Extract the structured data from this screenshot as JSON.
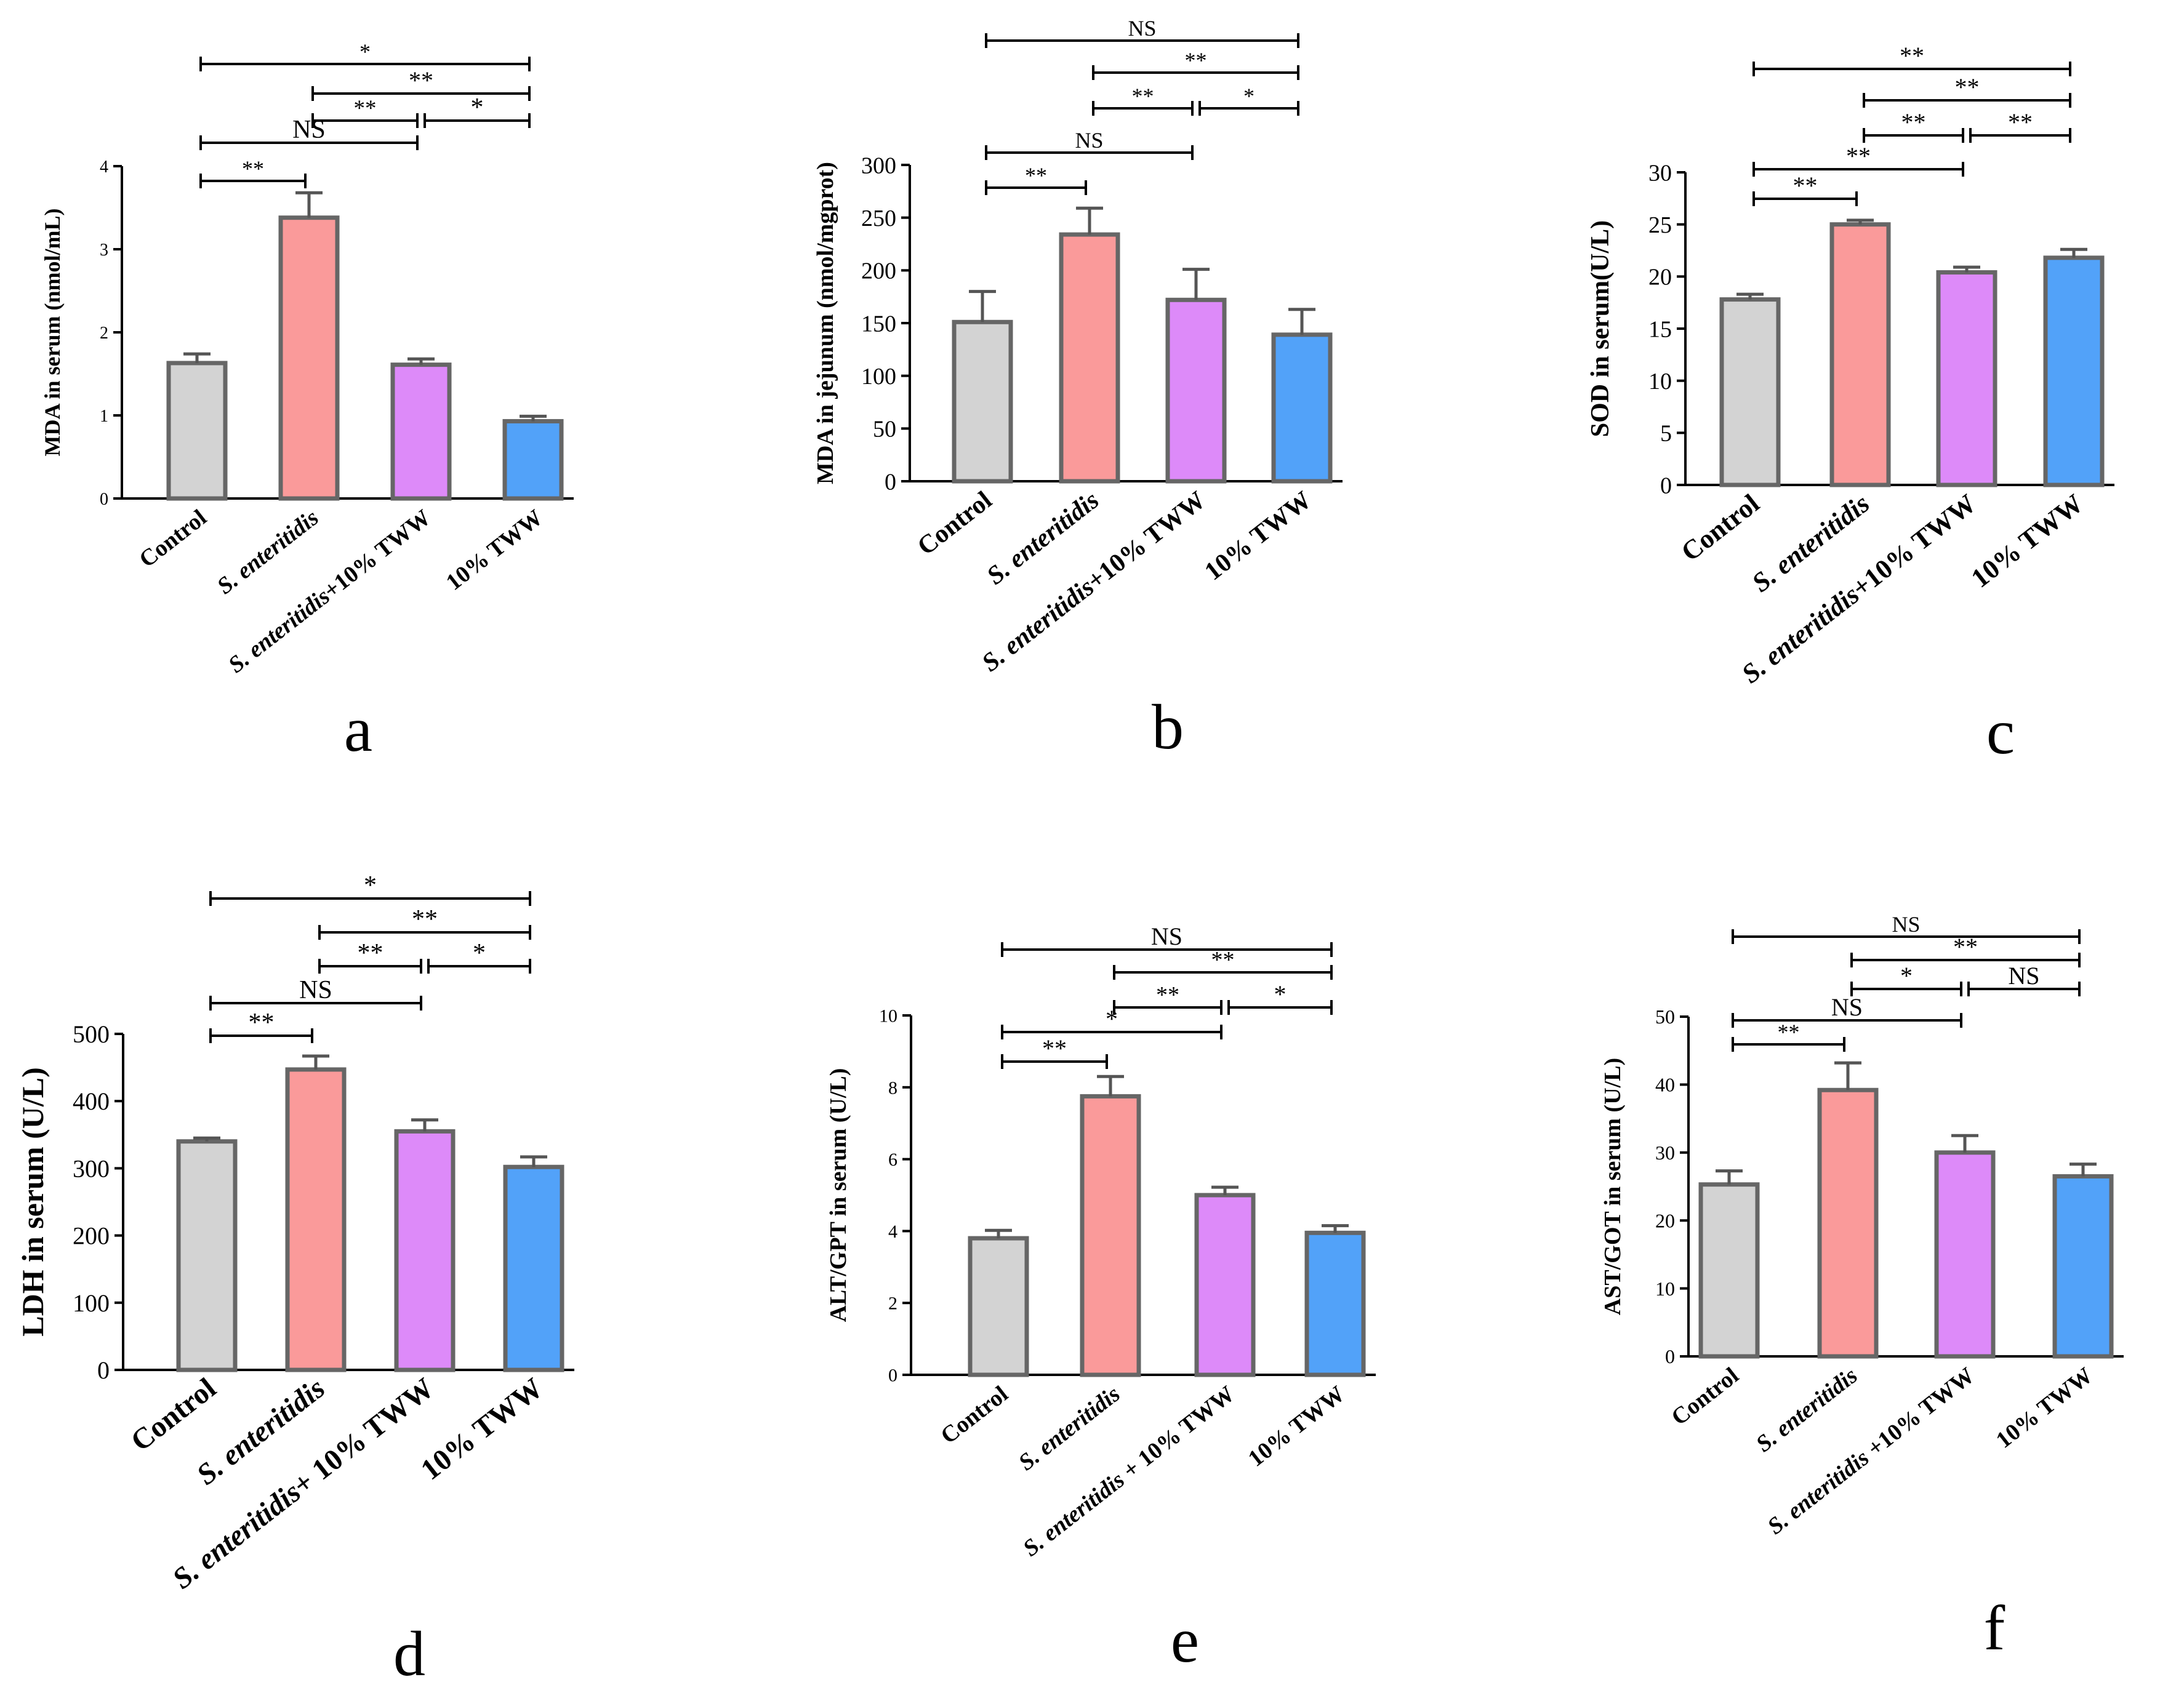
{
  "figure": {
    "panels": [
      {
        "id": "a",
        "letter": "a"
      },
      {
        "id": "b",
        "letter": "b"
      },
      {
        "id": "c",
        "letter": "c"
      },
      {
        "id": "d",
        "letter": "d"
      },
      {
        "id": "e",
        "letter": "e"
      },
      {
        "id": "f",
        "letter": "f"
      }
    ]
  },
  "chart_data": [
    {
      "panel": "a",
      "type": "bar",
      "ylabel": "MDA in serum (nmol/mL)",
      "ylim": [
        0,
        4
      ],
      "yticks": [
        0,
        1,
        2,
        3,
        4
      ],
      "categories": [
        {
          "parts": [
            {
              "text": "Control",
              "italic": false
            }
          ]
        },
        {
          "parts": [
            {
              "text": "S. enteritidis",
              "italic": true
            }
          ]
        },
        {
          "parts": [
            {
              "text": "S. enteritidis",
              "italic": true
            },
            {
              "text": "+10% TWW",
              "italic": false
            }
          ]
        },
        {
          "parts": [
            {
              "text": "10% TWW",
              "italic": false
            }
          ]
        }
      ],
      "values": [
        1.63,
        3.38,
        1.61,
        0.93
      ],
      "errors": [
        0.11,
        0.3,
        0.07,
        0.06
      ],
      "significance": [
        {
          "from": 0,
          "to": 1,
          "label": "**"
        },
        {
          "from": 0,
          "to": 2,
          "label": "NS"
        },
        {
          "from": 1,
          "to": 2,
          "label": "**"
        },
        {
          "from": 2,
          "to": 3,
          "label": "*"
        },
        {
          "from": 1,
          "to": 3,
          "label": "**"
        },
        {
          "from": 0,
          "to": 3,
          "label": "*"
        }
      ]
    },
    {
      "panel": "b",
      "type": "bar",
      "ylabel": "MDA in jejunum (nmol/mgprot)",
      "ylim": [
        0,
        300
      ],
      "yticks": [
        0,
        50,
        100,
        150,
        200,
        250,
        300
      ],
      "categories": [
        {
          "parts": [
            {
              "text": "Control",
              "italic": false
            }
          ]
        },
        {
          "parts": [
            {
              "text": "S. enteritidis",
              "italic": true
            }
          ]
        },
        {
          "parts": [
            {
              "text": "S. enteritidis",
              "italic": true
            },
            {
              "text": "+10% TWW",
              "italic": false
            }
          ]
        },
        {
          "parts": [
            {
              "text": "10% TWW",
              "italic": false
            }
          ]
        }
      ],
      "values": [
        151,
        234,
        172,
        139
      ],
      "errors": [
        29,
        25,
        29,
        24
      ],
      "significance": [
        {
          "from": 0,
          "to": 1,
          "label": "**"
        },
        {
          "from": 0,
          "to": 2,
          "label": "NS"
        },
        {
          "from": 1,
          "to": 2,
          "label": "**"
        },
        {
          "from": 2,
          "to": 3,
          "label": "*"
        },
        {
          "from": 1,
          "to": 3,
          "label": "**"
        },
        {
          "from": 0,
          "to": 3,
          "label": "NS"
        }
      ]
    },
    {
      "panel": "c",
      "type": "bar",
      "ylabel": "SOD in serum(U/L)",
      "ylim": [
        0,
        30
      ],
      "yticks": [
        0,
        5,
        10,
        15,
        20,
        25,
        30
      ],
      "categories": [
        {
          "parts": [
            {
              "text": "Control",
              "italic": false
            }
          ]
        },
        {
          "parts": [
            {
              "text": "S. enteritidis",
              "italic": true
            }
          ]
        },
        {
          "parts": [
            {
              "text": "S. enteritidis",
              "italic": true
            },
            {
              "text": "+10% TWW",
              "italic": false
            }
          ]
        },
        {
          "parts": [
            {
              "text": "10% TWW",
              "italic": false
            }
          ]
        }
      ],
      "values": [
        17.8,
        25.0,
        20.4,
        21.8
      ],
      "errors": [
        0.5,
        0.4,
        0.5,
        0.8
      ],
      "significance": [
        {
          "from": 0,
          "to": 1,
          "label": "**"
        },
        {
          "from": 0,
          "to": 2,
          "label": "**"
        },
        {
          "from": 1,
          "to": 2,
          "label": "**"
        },
        {
          "from": 2,
          "to": 3,
          "label": "**"
        },
        {
          "from": 1,
          "to": 3,
          "label": "**"
        },
        {
          "from": 0,
          "to": 3,
          "label": "**"
        }
      ]
    },
    {
      "panel": "d",
      "type": "bar",
      "ylabel": "LDH in serum (U/L)",
      "ylim": [
        0,
        500
      ],
      "yticks": [
        0,
        100,
        200,
        300,
        400,
        500
      ],
      "categories": [
        {
          "parts": [
            {
              "text": "Control",
              "italic": false
            }
          ]
        },
        {
          "parts": [
            {
              "text": "S. enteritidis",
              "italic": true
            }
          ]
        },
        {
          "parts": [
            {
              "text": "S. enteritidis",
              "italic": true
            },
            {
              "text": "+ 10% TWW",
              "italic": false
            }
          ]
        },
        {
          "parts": [
            {
              "text": "10% TWW",
              "italic": false
            }
          ]
        }
      ],
      "values": [
        340,
        447,
        355,
        302
      ],
      "errors": [
        5,
        20,
        17,
        15
      ],
      "significance": [
        {
          "from": 0,
          "to": 1,
          "label": "**"
        },
        {
          "from": 0,
          "to": 2,
          "label": "NS"
        },
        {
          "from": 1,
          "to": 2,
          "label": "**"
        },
        {
          "from": 2,
          "to": 3,
          "label": "*"
        },
        {
          "from": 1,
          "to": 3,
          "label": "**"
        },
        {
          "from": 0,
          "to": 3,
          "label": "*"
        }
      ]
    },
    {
      "panel": "e",
      "type": "bar",
      "ylabel": "ALT/GPT in serum (U/L)",
      "ylim": [
        0,
        10
      ],
      "yticks": [
        0,
        2,
        4,
        6,
        8,
        10
      ],
      "categories": [
        {
          "parts": [
            {
              "text": "Control",
              "italic": false
            }
          ]
        },
        {
          "parts": [
            {
              "text": "S. enteritidis",
              "italic": true
            }
          ]
        },
        {
          "parts": [
            {
              "text": "S. enteritidis",
              "italic": true
            },
            {
              "text": " + 10% TWW",
              "italic": false
            }
          ]
        },
        {
          "parts": [
            {
              "text": "10% TWW",
              "italic": false
            }
          ]
        }
      ],
      "values": [
        3.8,
        7.75,
        5.0,
        3.95
      ],
      "errors": [
        0.22,
        0.55,
        0.22,
        0.2
      ],
      "significance": [
        {
          "from": 0,
          "to": 1,
          "label": "**"
        },
        {
          "from": 0,
          "to": 2,
          "label": "*"
        },
        {
          "from": 1,
          "to": 2,
          "label": "**"
        },
        {
          "from": 2,
          "to": 3,
          "label": "*"
        },
        {
          "from": 1,
          "to": 3,
          "label": "**"
        },
        {
          "from": 0,
          "to": 3,
          "label": "NS"
        }
      ]
    },
    {
      "panel": "f",
      "type": "bar",
      "ylabel": "AST/GOT in serum (U/L)",
      "ylim": [
        0,
        50
      ],
      "yticks": [
        0,
        10,
        20,
        30,
        40,
        50
      ],
      "categories": [
        {
          "parts": [
            {
              "text": "Control",
              "italic": false
            }
          ]
        },
        {
          "parts": [
            {
              "text": "S. enteritidis",
              "italic": true
            }
          ]
        },
        {
          "parts": [
            {
              "text": "S. enteritidis",
              "italic": true
            },
            {
              "text": " +10% TWW",
              "italic": false
            }
          ]
        },
        {
          "parts": [
            {
              "text": "10% TWW",
              "italic": false
            }
          ]
        }
      ],
      "values": [
        25.3,
        39.2,
        30.0,
        26.5
      ],
      "errors": [
        2.0,
        4.0,
        2.5,
        1.8
      ],
      "significance": [
        {
          "from": 0,
          "to": 1,
          "label": "**"
        },
        {
          "from": 0,
          "to": 2,
          "label": "NS"
        },
        {
          "from": 1,
          "to": 2,
          "label": "*"
        },
        {
          "from": 2,
          "to": 3,
          "label": "NS"
        },
        {
          "from": 1,
          "to": 3,
          "label": "**"
        },
        {
          "from": 0,
          "to": 3,
          "label": "NS"
        }
      ]
    }
  ],
  "colors": {
    "bars": [
      "#d3d3d3",
      "#fa9a9a",
      "#dd8af9",
      "#52a2f9"
    ],
    "bar_border": "#666666",
    "error_bar": "#555555",
    "axis": "#000000"
  }
}
